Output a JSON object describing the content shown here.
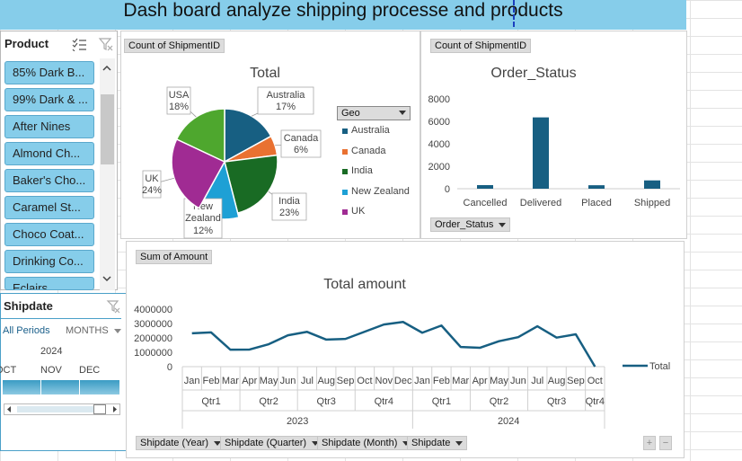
{
  "title": "Dash board analyze shipping processe and products",
  "product_slicer": {
    "header": "Product",
    "items": [
      "85% Dark B...",
      "99% Dark & ...",
      "After Nines",
      "Almond Ch...",
      "Baker's Cho...",
      "Caramel St...",
      "Choco Coat...",
      "Drinking Co...",
      "Eclairs"
    ]
  },
  "shipdate_timeline": {
    "header": "Shipdate",
    "periods_label": "All Periods",
    "level_label": "MONTHS",
    "year": "2024",
    "months": [
      "OCT",
      "NOV",
      "DEC"
    ]
  },
  "pie": {
    "field_button": "Count of ShipmentID",
    "legend_button": "Geo",
    "chart_data": {
      "type": "pie",
      "title": "Total",
      "slices": [
        {
          "label": "Australia",
          "value": 17,
          "pct_label": "17%",
          "color": "#175f82"
        },
        {
          "label": "Canada",
          "value": 6,
          "pct_label": "6%",
          "color": "#e97131"
        },
        {
          "label": "India",
          "value": 23,
          "pct_label": "23%",
          "color": "#196b24"
        },
        {
          "label": "New Zealand",
          "value": 12,
          "pct_label": "12%",
          "color": "#1ea0d5"
        },
        {
          "label": "UK",
          "value": 24,
          "pct_label": "24%",
          "color": "#a02b93"
        },
        {
          "label": "USA",
          "value": 18,
          "pct_label": "18%",
          "color": "#4ea72e"
        }
      ],
      "legend": [
        "Australia",
        "Canada",
        "India",
        "New Zealand",
        "UK"
      ],
      "legend_placement": "right"
    }
  },
  "status": {
    "field_button": "Count of ShipmentID",
    "axis_button": "Order_Status",
    "chart_data": {
      "type": "bar",
      "title": "Order_Status",
      "categories": [
        "Cancelled",
        "Delivered",
        "Placed",
        "Shipped"
      ],
      "values": [
        320,
        6350,
        310,
        740
      ],
      "ylim": [
        0,
        8000
      ],
      "yticks": [
        0,
        2000,
        4000,
        6000,
        8000
      ],
      "color": "#175f82"
    }
  },
  "amount": {
    "field_button": "Sum of Amount",
    "axis_buttons": [
      "Shipdate (Year)",
      "Shipdate (Quarter)",
      "Shipdate (Month)",
      "Shipdate"
    ],
    "chart_data": {
      "type": "line",
      "title": "Total amount",
      "series": [
        {
          "name": "Total",
          "values": [
            2320000,
            2380000,
            1180000,
            1190000,
            1560000,
            2180000,
            2420000,
            1880000,
            1930000,
            2430000,
            2930000,
            3110000,
            2360000,
            2860000,
            1370000,
            1310000,
            1770000,
            2050000,
            2810000,
            2020000,
            2250000,
            0
          ]
        }
      ],
      "months": [
        "Jan",
        "Feb",
        "Mar",
        "Apr",
        "May",
        "Jun",
        "Jul",
        "Aug",
        "Sep",
        "Oct",
        "Nov",
        "Dec",
        "Jan",
        "Feb",
        "Mar",
        "Apr",
        "May",
        "Jun",
        "Jul",
        "Aug",
        "Sep",
        "Oct"
      ],
      "quarters": [
        {
          "label": "Qtr1",
          "span": 3
        },
        {
          "label": "Qtr2",
          "span": 3
        },
        {
          "label": "Qtr3",
          "span": 3
        },
        {
          "label": "Qtr4",
          "span": 3
        },
        {
          "label": "Qtr1",
          "span": 3
        },
        {
          "label": "Qtr2",
          "span": 3
        },
        {
          "label": "Qtr3",
          "span": 3
        },
        {
          "label": "Qtr4",
          "span": 1
        }
      ],
      "years": [
        {
          "label": "2023",
          "span": 12
        },
        {
          "label": "2024",
          "span": 10
        }
      ],
      "ylim": [
        0,
        4000000
      ],
      "yticks": [
        0,
        1000000,
        2000000,
        3000000,
        4000000
      ],
      "color": "#175f82",
      "legend_placement": "right"
    }
  }
}
